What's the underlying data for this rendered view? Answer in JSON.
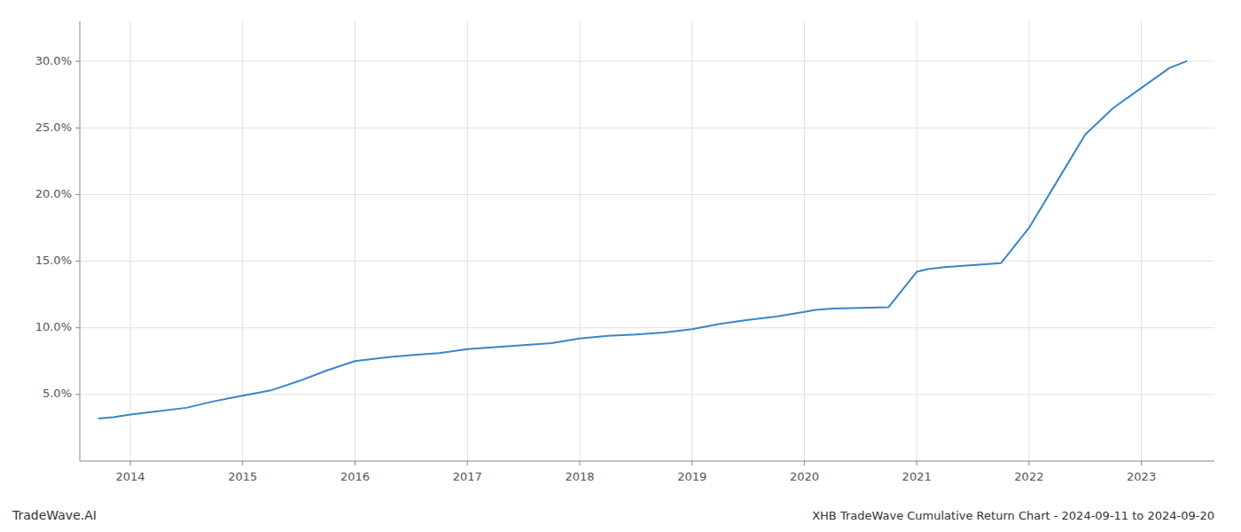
{
  "chart_data": {
    "type": "line",
    "title": "XHB TradeWave Cumulative Return Chart - 2024-09-11 to 2024-09-20",
    "annotations": [
      "TradeWave.AI"
    ],
    "color": "#3a86c8",
    "grid": true,
    "x": [
      2013.72,
      2013.85,
      2014.0,
      2014.2,
      2014.5,
      2014.75,
      2015.0,
      2015.25,
      2015.5,
      2015.75,
      2016.0,
      2016.15,
      2016.3,
      2016.5,
      2016.75,
      2017.0,
      2017.25,
      2017.5,
      2017.75,
      2018.0,
      2018.25,
      2018.5,
      2018.75,
      2019.0,
      2019.25,
      2019.5,
      2019.75,
      2020.0,
      2020.1,
      2020.25,
      2020.5,
      2020.75,
      2021.0,
      2021.1,
      2021.25,
      2021.5,
      2021.75,
      2022.0,
      2022.25,
      2022.5,
      2022.75,
      2023.0,
      2023.25,
      2023.4
    ],
    "values": [
      3.2,
      3.3,
      3.5,
      3.7,
      4.0,
      4.5,
      4.9,
      5.3,
      6.0,
      6.8,
      7.5,
      7.65,
      7.8,
      7.95,
      8.1,
      8.4,
      8.55,
      8.7,
      8.85,
      9.2,
      9.4,
      9.5,
      9.65,
      9.9,
      10.3,
      10.6,
      10.85,
      11.2,
      11.35,
      11.45,
      11.5,
      11.55,
      14.2,
      14.4,
      14.55,
      14.7,
      14.85,
      17.5,
      21.0,
      24.5,
      26.5,
      28.0,
      29.5,
      30.0
    ],
    "xlim": [
      2013.55,
      2023.65
    ],
    "ylim": [
      0,
      33
    ],
    "xticks": [
      2014,
      2015,
      2016,
      2017,
      2018,
      2019,
      2020,
      2021,
      2022,
      2023
    ],
    "yticks": [
      {
        "value": 5.0,
        "label": "5.0%"
      },
      {
        "value": 10.0,
        "label": "10.0%"
      },
      {
        "value": 15.0,
        "label": "15.0%"
      },
      {
        "value": 20.0,
        "label": "20.0%"
      },
      {
        "value": 25.0,
        "label": "25.0%"
      },
      {
        "value": 30.0,
        "label": "30.0%"
      }
    ]
  }
}
